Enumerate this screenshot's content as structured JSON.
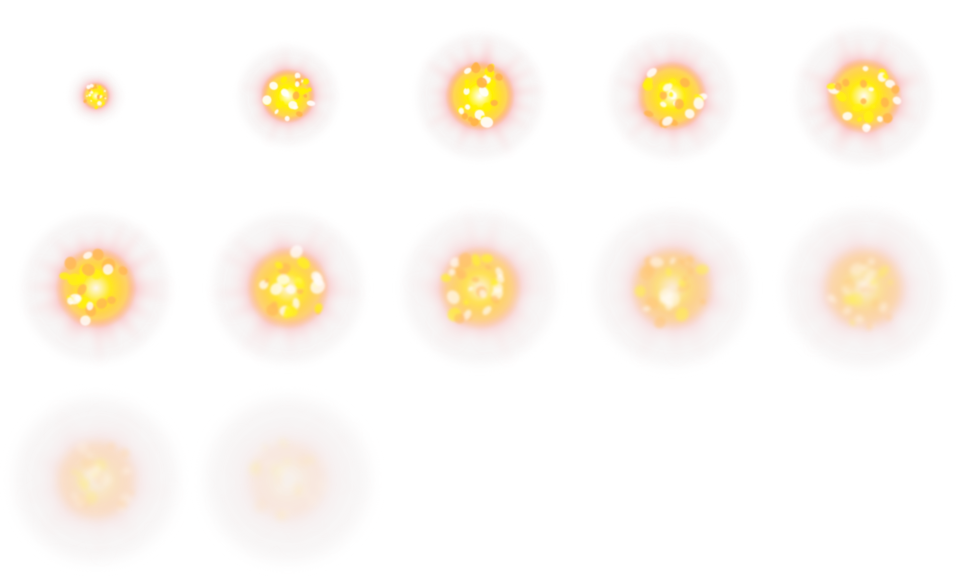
{
  "sprite_sheet": {
    "columns": 5,
    "rows": 3,
    "frame_count": 12,
    "background": "#ffffff",
    "palette": {
      "core_white": "#ffffff",
      "core_yellow": "#fff200",
      "mid_yellow": "#ffe14a",
      "orange": "#ffb347",
      "outer_red": "#ff4d4d",
      "outer_pink": "#ff9aa0",
      "haze": "#f2eeee"
    },
    "frames": [
      {
        "name": "explosion-frame-1",
        "radius": 0.18,
        "intensity": 1.0,
        "fade": 0.0
      },
      {
        "name": "explosion-frame-2",
        "radius": 0.36,
        "intensity": 1.0,
        "fade": 0.0
      },
      {
        "name": "explosion-frame-3",
        "radius": 0.46,
        "intensity": 1.0,
        "fade": 0.0
      },
      {
        "name": "explosion-frame-4",
        "radius": 0.46,
        "intensity": 0.95,
        "fade": 0.05
      },
      {
        "name": "explosion-frame-5",
        "radius": 0.5,
        "intensity": 0.95,
        "fade": 0.05
      },
      {
        "name": "explosion-frame-6",
        "radius": 0.54,
        "intensity": 0.9,
        "fade": 0.1
      },
      {
        "name": "explosion-frame-7",
        "radius": 0.55,
        "intensity": 0.85,
        "fade": 0.18
      },
      {
        "name": "explosion-frame-8",
        "radius": 0.56,
        "intensity": 0.75,
        "fade": 0.3
      },
      {
        "name": "explosion-frame-9",
        "radius": 0.57,
        "intensity": 0.6,
        "fade": 0.45
      },
      {
        "name": "explosion-frame-10",
        "radius": 0.58,
        "intensity": 0.5,
        "fade": 0.55
      },
      {
        "name": "explosion-frame-11",
        "radius": 0.6,
        "intensity": 0.32,
        "fade": 0.72
      },
      {
        "name": "explosion-frame-12",
        "radius": 0.6,
        "intensity": 0.15,
        "fade": 0.88
      }
    ]
  }
}
